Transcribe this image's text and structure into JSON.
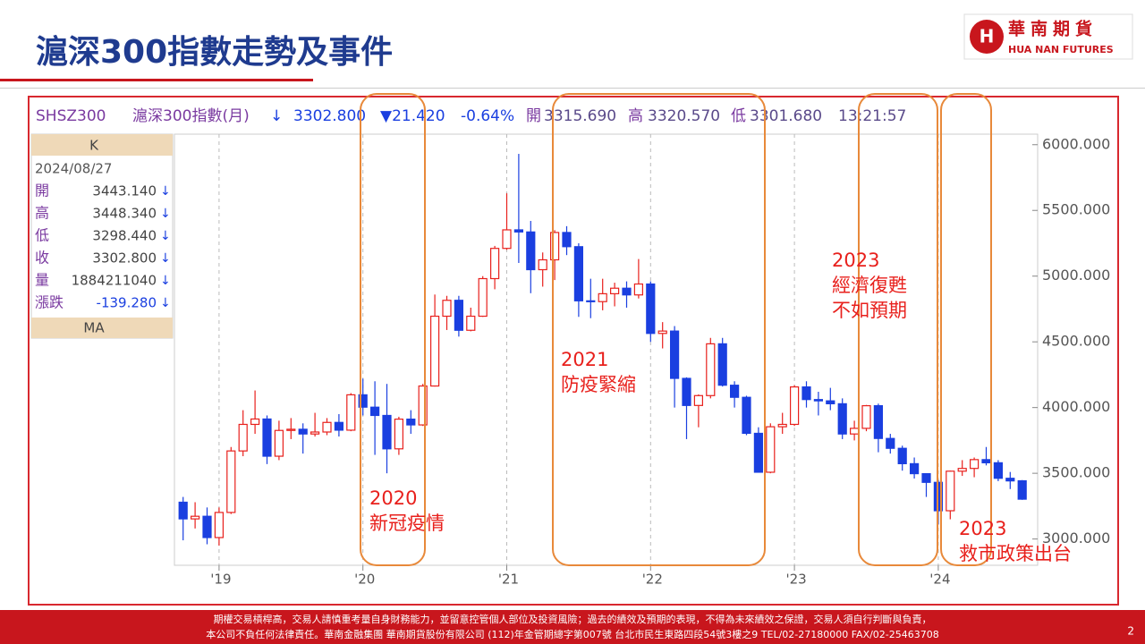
{
  "slide": {
    "title": "滬深300指數走勢及事件",
    "logo": {
      "name": "華南期貨",
      "english": "HUA NAN FUTURES"
    },
    "info_bar": [
      "SHSZ300",
      "滬深300指數(月)",
      "↓",
      "3302.800",
      "▼21.420",
      "-0.64%",
      "開",
      "3315.690",
      "高",
      "3320.570",
      "低",
      "3301.680",
      "13:21:57"
    ],
    "panel": {
      "header": "K",
      "date": "2024/08/27",
      "rows": [
        [
          "開",
          "3443.140",
          "↓"
        ],
        [
          "高",
          "3448.340",
          "↓"
        ],
        [
          "低",
          "3298.440",
          "↓"
        ],
        [
          "收",
          "3302.800",
          "↓"
        ],
        [
          "量",
          "1884211040",
          "↓"
        ],
        [
          "漲跌",
          "-139.280",
          "↓"
        ]
      ],
      "footer": "MA"
    },
    "annotations": [
      [
        "2020",
        "新冠疫情"
      ],
      [
        "2021",
        "防疫緊縮"
      ],
      [
        "2023",
        "經濟復甦",
        "不如預期"
      ],
      [
        "2023",
        "救市政策出台"
      ]
    ],
    "disclaimer": [
      "期權交易槓桿高，交易人請慎重考量自身財務能力，並留意控管個人部位及投資風險；過去的績效及預期的表現，不得為未來績效之保證，交易人須自行判斷與負責，",
      "本公司不負任何法律責任。華南金融集團  華南期貨股份有限公司 (112)年金管期總字第007號  台北市民生東路四段54號3樓之9  TEL/02-27180000  FAX/02-25463708"
    ],
    "page_number": "2"
  },
  "chart_data": {
    "type": "candlestick",
    "categories": [
      null,
      null,
      null,
      "'19",
      null,
      null,
      null,
      null,
      null,
      null,
      null,
      null,
      null,
      null,
      null,
      "'20",
      null,
      null,
      null,
      null,
      null,
      null,
      null,
      null,
      null,
      null,
      null,
      "'21",
      null,
      null,
      null,
      null,
      null,
      null,
      null,
      null,
      null,
      null,
      null,
      "'22",
      null,
      null,
      null,
      null,
      null,
      null,
      null,
      null,
      null,
      null,
      null,
      "'23",
      null,
      null,
      null,
      null,
      null,
      null,
      null,
      null,
      null,
      null,
      null,
      "'24",
      null,
      null,
      null,
      null,
      null,
      null,
      null
    ],
    "open": [
      3280,
      3153,
      3173,
      3011,
      3202,
      3670,
      3872,
      3913,
      3630,
      3826,
      3835,
      3799,
      3814,
      3887,
      3828,
      4097,
      4003,
      3940,
      3686,
      3912,
      3868,
      4164,
      4695,
      4816,
      4588,
      4695,
      4981,
      5211,
      5352,
      5336,
      5049,
      5124,
      5332,
      5224,
      4812,
      4806,
      4866,
      4908,
      4857,
      4940,
      4564,
      4582,
      4222,
      4016,
      4091,
      4485,
      4170,
      4078,
      3804,
      3508,
      3854,
      3872,
      4157,
      4061,
      4051,
      4029,
      3799,
      3842,
      4014,
      3765,
      3690,
      3573,
      3497,
      3431,
      3215,
      3516,
      3537,
      3604,
      3580,
      3462,
      3443
    ],
    "high": [
      3320,
      3280,
      3240,
      3240,
      3700,
      3980,
      4130,
      3940,
      3900,
      3920,
      3880,
      3960,
      3920,
      3950,
      4110,
      4220,
      4200,
      4180,
      3930,
      3980,
      4180,
      4860,
      4850,
      4850,
      4760,
      5000,
      5230,
      5630,
      5930,
      5420,
      5180,
      5350,
      5380,
      5250,
      4980,
      4980,
      4950,
      4960,
      5130,
      4960,
      4650,
      4620,
      4230,
      4100,
      4530,
      4530,
      4200,
      4090,
      3850,
      3880,
      3960,
      4170,
      4200,
      4120,
      4150,
      4070,
      3900,
      4020,
      4030,
      3800,
      3710,
      3620,
      3500,
      3450,
      3520,
      3600,
      3620,
      3700,
      3600,
      3510,
      3448
    ],
    "low": [
      2990,
      3080,
      2960,
      2950,
      3190,
      3630,
      3800,
      3570,
      3600,
      3760,
      3650,
      3780,
      3790,
      3780,
      3820,
      3940,
      3640,
      3500,
      3640,
      3800,
      3860,
      4160,
      4590,
      4540,
      4580,
      4690,
      4900,
      5200,
      5100,
      4870,
      4920,
      4970,
      5160,
      4690,
      4680,
      4740,
      4770,
      4760,
      4830,
      4500,
      4450,
      4000,
      3760,
      3850,
      4070,
      4160,
      4000,
      3790,
      3510,
      3500,
      3800,
      3860,
      4000,
      3940,
      3980,
      3760,
      3750,
      3820,
      3660,
      3650,
      3520,
      3460,
      3320,
      3110,
      3150,
      3480,
      3470,
      3560,
      3440,
      3380,
      3298
    ],
    "close": [
      3153,
      3173,
      3011,
      3202,
      3670,
      3872,
      3913,
      3630,
      3826,
      3835,
      3799,
      3814,
      3887,
      3828,
      4097,
      4003,
      3940,
      3686,
      3912,
      3868,
      4164,
      4695,
      4816,
      4588,
      4695,
      4981,
      5211,
      5352,
      5336,
      5049,
      5124,
      5332,
      5224,
      4812,
      4806,
      4866,
      4908,
      4857,
      4940,
      4564,
      4582,
      4222,
      4016,
      4091,
      4485,
      4170,
      4078,
      3804,
      3508,
      3854,
      3872,
      4157,
      4061,
      4051,
      4029,
      3799,
      3842,
      4014,
      3765,
      3690,
      3573,
      3497,
      3431,
      3215,
      3516,
      3537,
      3604,
      3580,
      3462,
      3442,
      3303
    ],
    "up_color": "#e8201c",
    "down_color": "#1a3fe0",
    "ylim": [
      2800,
      6080
    ],
    "yticks": [
      {
        "value": 3000,
        "label": "3000.000"
      },
      {
        "value": 3500,
        "label": "3500.000"
      },
      {
        "value": 4000,
        "label": "4000.000"
      },
      {
        "value": 4500,
        "label": "4500.000"
      },
      {
        "value": 5000,
        "label": "5000.000"
      },
      {
        "value": 5500,
        "label": "5500.000"
      },
      {
        "value": 6000,
        "label": "6000.000"
      }
    ],
    "grid": true
  }
}
